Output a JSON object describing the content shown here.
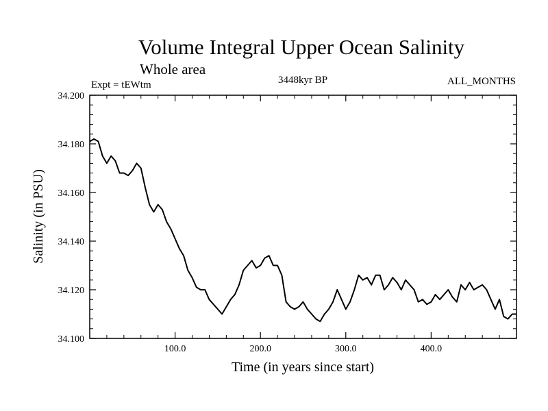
{
  "chart_data": {
    "type": "line",
    "title": "Volume Integral Upper Ocean Salinity",
    "subtitle": "Whole area",
    "experiment_label": "Expt = tEWtm",
    "period_label": "3448kyr BP",
    "months_label": "ALL_MONTHS",
    "xlabel": "Time (in years since start)",
    "ylabel": "Salinity (in PSU)",
    "xlim": [
      0,
      500
    ],
    "ylim": [
      34.1,
      34.2
    ],
    "x_ticks": [
      100,
      200,
      300,
      400
    ],
    "x_tick_labels": [
      "100.0",
      "200.0",
      "300.0",
      "400.0"
    ],
    "y_ticks": [
      34.1,
      34.12,
      34.14,
      34.16,
      34.18,
      34.2
    ],
    "y_tick_labels": [
      "34.100",
      "34.120",
      "34.140",
      "34.160",
      "34.180",
      "34.200"
    ],
    "grid": false,
    "series": [
      {
        "name": "Salinity",
        "color": "#000000",
        "x": [
          0,
          5,
          10,
          15,
          20,
          25,
          30,
          35,
          40,
          45,
          50,
          55,
          60,
          65,
          70,
          75,
          80,
          85,
          90,
          95,
          100,
          105,
          110,
          115,
          120,
          125,
          130,
          135,
          140,
          145,
          150,
          155,
          160,
          165,
          170,
          175,
          180,
          185,
          190,
          195,
          200,
          205,
          210,
          215,
          220,
          225,
          230,
          235,
          240,
          245,
          250,
          255,
          260,
          265,
          270,
          275,
          280,
          285,
          290,
          295,
          300,
          305,
          310,
          315,
          320,
          325,
          330,
          335,
          340,
          345,
          350,
          355,
          360,
          365,
          370,
          375,
          380,
          385,
          390,
          395,
          400,
          405,
          410,
          415,
          420,
          425,
          430,
          435,
          440,
          445,
          450,
          455,
          460,
          465,
          470,
          475,
          480,
          485,
          490,
          495,
          500
        ],
        "values": [
          34.181,
          34.182,
          34.181,
          34.175,
          34.172,
          34.175,
          34.173,
          34.168,
          34.168,
          34.167,
          34.169,
          34.172,
          34.17,
          34.162,
          34.155,
          34.152,
          34.155,
          34.153,
          34.148,
          34.145,
          34.141,
          34.137,
          34.134,
          34.128,
          34.125,
          34.121,
          34.12,
          34.12,
          34.116,
          34.114,
          34.112,
          34.11,
          34.113,
          34.116,
          34.118,
          34.122,
          34.128,
          34.13,
          34.132,
          34.129,
          34.13,
          34.133,
          34.134,
          34.13,
          34.13,
          34.126,
          34.115,
          34.113,
          34.112,
          34.113,
          34.115,
          34.112,
          34.11,
          34.108,
          34.107,
          34.11,
          34.112,
          34.115,
          34.12,
          34.116,
          34.112,
          34.115,
          34.12,
          34.126,
          34.124,
          34.125,
          34.122,
          34.126,
          34.126,
          34.12,
          34.122,
          34.125,
          34.123,
          34.12,
          34.124,
          34.122,
          34.12,
          34.115,
          34.116,
          34.114,
          34.115,
          34.118,
          34.116,
          34.118,
          34.12,
          34.117,
          34.115,
          34.122,
          34.12,
          34.123,
          34.12,
          34.121,
          34.122,
          34.12,
          34.116,
          34.112,
          34.116,
          34.109,
          34.108,
          34.11,
          34.11
        ]
      }
    ]
  }
}
